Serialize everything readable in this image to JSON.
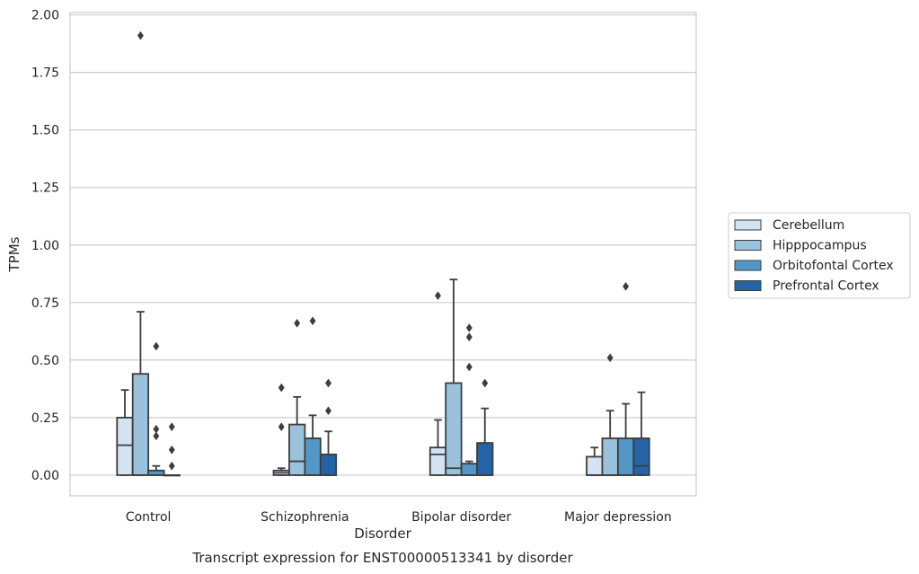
{
  "chart_data": {
    "type": "box",
    "title": "Transcript expression for ENST00000513341 by disorder",
    "xlabel": "Disorder",
    "ylabel": "TPMs",
    "ylim": [
      -0.09,
      2.01
    ],
    "yticks": [
      0.0,
      0.25,
      0.5,
      0.75,
      1.0,
      1.25,
      1.5,
      1.75,
      2.0
    ],
    "ytick_labels": [
      "0.00",
      "0.25",
      "0.50",
      "0.75",
      "1.00",
      "1.25",
      "1.50",
      "1.75",
      "2.00"
    ],
    "grid": "horizontal",
    "legend_position": "right",
    "categories": [
      "Control",
      "Schizophrenia",
      "Bipolar disorder",
      "Major depression"
    ],
    "series": [
      {
        "name": "Cerebellum",
        "color": "#d3e3f2",
        "boxes": [
          {
            "q1": 0.0,
            "median": 0.13,
            "q3": 0.25,
            "whislo": 0.0,
            "whishi": 0.37,
            "fliers": []
          },
          {
            "q1": 0.0,
            "median": 0.01,
            "q3": 0.02,
            "whislo": 0.0,
            "whishi": 0.03,
            "fliers": [
              0.21,
              0.38
            ]
          },
          {
            "q1": 0.0,
            "median": 0.09,
            "q3": 0.12,
            "whislo": 0.0,
            "whishi": 0.24,
            "fliers": [
              0.78
            ]
          },
          {
            "q1": 0.0,
            "median": 0.0,
            "q3": 0.08,
            "whislo": 0.0,
            "whishi": 0.12,
            "fliers": []
          }
        ]
      },
      {
        "name": "Hipppocampus",
        "color": "#9ac2dc",
        "boxes": [
          {
            "q1": 0.0,
            "median": 0.0,
            "q3": 0.44,
            "whislo": 0.0,
            "whishi": 0.71,
            "fliers": [
              1.91
            ]
          },
          {
            "q1": 0.0,
            "median": 0.06,
            "q3": 0.22,
            "whislo": 0.0,
            "whishi": 0.34,
            "fliers": [
              0.66
            ]
          },
          {
            "q1": 0.0,
            "median": 0.03,
            "q3": 0.4,
            "whislo": 0.0,
            "whishi": 0.85,
            "fliers": []
          },
          {
            "q1": 0.0,
            "median": 0.0,
            "q3": 0.16,
            "whislo": 0.0,
            "whishi": 0.28,
            "fliers": [
              0.51
            ]
          }
        ]
      },
      {
        "name": "Orbitofontal Cortex",
        "color": "#5397c6",
        "boxes": [
          {
            "q1": 0.0,
            "median": 0.0,
            "q3": 0.02,
            "whislo": 0.0,
            "whishi": 0.04,
            "fliers": [
              0.17,
              0.2,
              0.56
            ]
          },
          {
            "q1": 0.0,
            "median": 0.0,
            "q3": 0.16,
            "whislo": 0.0,
            "whishi": 0.26,
            "fliers": [
              0.67
            ]
          },
          {
            "q1": 0.0,
            "median": 0.0,
            "q3": 0.05,
            "whislo": 0.0,
            "whishi": 0.06,
            "fliers": [
              0.47,
              0.6,
              0.64
            ]
          },
          {
            "q1": 0.0,
            "median": 0.0,
            "q3": 0.16,
            "whislo": 0.0,
            "whishi": 0.31,
            "fliers": [
              0.82
            ]
          }
        ]
      },
      {
        "name": "Prefrontal Cortex",
        "color": "#2464a6",
        "boxes": [
          {
            "q1": 0.0,
            "median": 0.0,
            "q3": 0.0,
            "whislo": 0.0,
            "whishi": 0.0,
            "fliers": [
              0.04,
              0.11,
              0.21
            ]
          },
          {
            "q1": 0.0,
            "median": 0.0,
            "q3": 0.09,
            "whislo": 0.0,
            "whishi": 0.19,
            "fliers": [
              0.28,
              0.4
            ]
          },
          {
            "q1": 0.0,
            "median": 0.0,
            "q3": 0.14,
            "whislo": 0.0,
            "whishi": 0.29,
            "fliers": [
              0.4
            ]
          },
          {
            "q1": 0.0,
            "median": 0.04,
            "q3": 0.16,
            "whislo": 0.0,
            "whishi": 0.36,
            "fliers": []
          }
        ]
      }
    ]
  }
}
